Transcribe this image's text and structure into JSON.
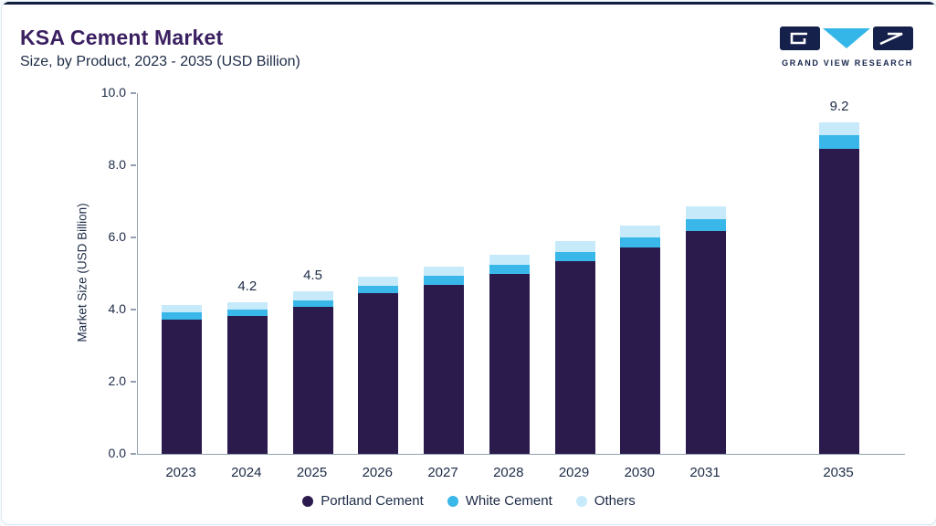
{
  "header": {
    "title": "KSA Cement Market",
    "subtitle": "Size, by Product, 2023 - 2035 (USD Billion)",
    "brand_name": "GRAND VIEW RESEARCH"
  },
  "chart_data": {
    "type": "bar",
    "stacked": true,
    "title": "KSA Cement Market",
    "subtitle": "Size, by Product, 2023 - 2035 (USD Billion)",
    "xlabel": "",
    "ylabel": "Market Size (USD Billion)",
    "ylim": [
      0,
      10
    ],
    "yticks": [
      "0.0",
      "2.0",
      "4.0",
      "6.0",
      "8.0",
      "10.0"
    ],
    "grid": false,
    "legend_position": "bottom",
    "categories": [
      "2023",
      "2024",
      "2025",
      "2026",
      "2027",
      "2028",
      "2029",
      "2030",
      "2031",
      "2035"
    ],
    "series": [
      {
        "name": "Portland Cement",
        "color": "#2b1b4d",
        "values": [
          3.72,
          3.82,
          4.08,
          4.45,
          4.68,
          5.0,
          5.33,
          5.73,
          6.18,
          8.45
        ]
      },
      {
        "name": "White Cement",
        "color": "#39b7e9",
        "values": [
          0.2,
          0.18,
          0.18,
          0.2,
          0.25,
          0.25,
          0.27,
          0.28,
          0.33,
          0.38
        ]
      },
      {
        "name": "Others",
        "color": "#c7eafb",
        "values": [
          0.2,
          0.2,
          0.24,
          0.27,
          0.27,
          0.28,
          0.3,
          0.33,
          0.34,
          0.37
        ]
      }
    ],
    "totals": [
      4.12,
      4.2,
      4.5,
      4.92,
      5.2,
      5.53,
      5.9,
      6.34,
      6.85,
      9.2
    ],
    "bar_labels": {
      "2024": "4.2",
      "2025": "4.5",
      "2035": "9.2"
    },
    "legend": [
      "Portland Cement",
      "White Cement",
      "Others"
    ]
  }
}
